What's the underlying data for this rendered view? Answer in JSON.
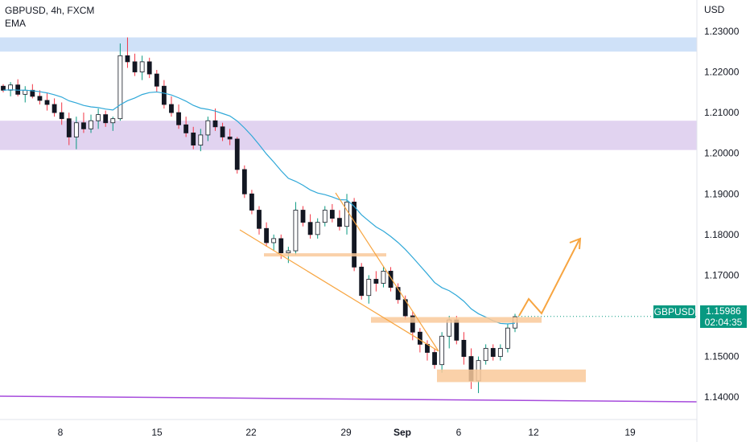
{
  "legend": {
    "line1": "GBPUSD, 4h, FXCM",
    "line2": "EMA"
  },
  "axis": {
    "currency": "USD"
  },
  "price_badge": {
    "symbol": "GBPUSD",
    "price": "1.15986",
    "countdown": "02:04:35"
  },
  "colors": {
    "up": "#089981",
    "down": "#f23645",
    "candle_body": "#131722",
    "ema": "#2fa8d8",
    "blue_zone": "#c7dcf7",
    "purple_zone": "#dccbed",
    "orange": "#f7a541",
    "support_line": "#a64bdc",
    "badge": "#089981"
  },
  "chart_data": {
    "type": "candlestick",
    "title": "GBPUSD, 4h, FXCM",
    "ylabel": "USD",
    "ylim": [
      1.1345,
      1.2377
    ],
    "y_ticks": [
      "1.23000",
      "1.22000",
      "1.21000",
      "1.20000",
      "1.19000",
      "1.18000",
      "1.17000",
      "1.16000",
      "1.15000",
      "1.14000"
    ],
    "x_ticks": [
      "8",
      "15",
      "22",
      "29",
      "Sep",
      "6",
      "12",
      "19"
    ],
    "last_price": 1.15986,
    "zones": [
      {
        "name": "resistance-blue",
        "low": 1.225,
        "high": 1.2285
      },
      {
        "name": "resistance-purple",
        "low": 1.2008,
        "high": 1.208
      }
    ],
    "key_levels": [
      {
        "name": "level-1-1750",
        "price": 1.175
      },
      {
        "name": "level-1-1590",
        "price": 1.159
      },
      {
        "name": "level-1-1450",
        "price": 1.145
      }
    ],
    "price_path_ohlc": [
      [
        1.2165,
        1.217,
        1.215,
        1.2155
      ],
      [
        1.2155,
        1.2175,
        1.214,
        1.2168
      ],
      [
        1.2168,
        1.2182,
        1.214,
        1.2145
      ],
      [
        1.2145,
        1.2165,
        1.2125,
        1.2155
      ],
      [
        1.2155,
        1.217,
        1.2135,
        1.214
      ],
      [
        1.214,
        1.2155,
        1.212,
        1.213
      ],
      [
        1.213,
        1.2148,
        1.2105,
        1.212
      ],
      [
        1.212,
        1.2135,
        1.209,
        1.21
      ],
      [
        1.21,
        1.2125,
        1.207,
        1.2085
      ],
      [
        1.2085,
        1.21,
        1.202,
        1.204
      ],
      [
        1.204,
        1.209,
        1.201,
        1.2075
      ],
      [
        1.2075,
        1.21,
        1.205,
        1.206
      ],
      [
        1.206,
        1.2095,
        1.205,
        1.208
      ],
      [
        1.208,
        1.211,
        1.206,
        1.2095
      ],
      [
        1.2095,
        1.2105,
        1.2065,
        1.2075
      ],
      [
        1.2075,
        1.209,
        1.2055,
        1.2085
      ],
      [
        1.2085,
        1.227,
        1.208,
        1.224
      ],
      [
        1.224,
        1.2285,
        1.221,
        1.2225
      ],
      [
        1.2225,
        1.2245,
        1.219,
        1.22
      ],
      [
        1.22,
        1.224,
        1.218,
        1.2225
      ],
      [
        1.2225,
        1.2235,
        1.2185,
        1.2195
      ],
      [
        1.2195,
        1.2205,
        1.215,
        1.2165
      ],
      [
        1.2165,
        1.218,
        1.211,
        1.212
      ],
      [
        1.212,
        1.214,
        1.209,
        1.21
      ],
      [
        1.21,
        1.212,
        1.206,
        1.207
      ],
      [
        1.207,
        1.209,
        1.204,
        1.205
      ],
      [
        1.205,
        1.2065,
        1.201,
        1.202
      ],
      [
        1.202,
        1.206,
        1.2005,
        1.2045
      ],
      [
        1.2045,
        1.209,
        1.203,
        1.208
      ],
      [
        1.208,
        1.211,
        1.2055,
        1.2065
      ],
      [
        1.2065,
        1.2075,
        1.203,
        1.204
      ],
      [
        1.204,
        1.206,
        1.202,
        1.2035
      ],
      [
        1.2035,
        1.204,
        1.195,
        1.196
      ],
      [
        1.196,
        1.197,
        1.189,
        1.19
      ],
      [
        1.19,
        1.191,
        1.185,
        1.186
      ],
      [
        1.186,
        1.187,
        1.18,
        1.1815
      ],
      [
        1.1815,
        1.183,
        1.177,
        1.178
      ],
      [
        1.178,
        1.18,
        1.176,
        1.179
      ],
      [
        1.179,
        1.18,
        1.174,
        1.1755
      ],
      [
        1.1755,
        1.177,
        1.173,
        1.176
      ],
      [
        1.176,
        1.188,
        1.175,
        1.186
      ],
      [
        1.186,
        1.187,
        1.182,
        1.183
      ],
      [
        1.183,
        1.185,
        1.179,
        1.18
      ],
      [
        1.18,
        1.184,
        1.179,
        1.183
      ],
      [
        1.183,
        1.187,
        1.182,
        1.186
      ],
      [
        1.186,
        1.1875,
        1.183,
        1.184
      ],
      [
        1.184,
        1.186,
        1.181,
        1.182
      ],
      [
        1.182,
        1.19,
        1.18,
        1.188
      ],
      [
        1.188,
        1.189,
        1.171,
        1.172
      ],
      [
        1.172,
        1.173,
        1.164,
        1.165
      ],
      [
        1.165,
        1.17,
        1.163,
        1.169
      ],
      [
        1.169,
        1.171,
        1.166,
        1.168
      ],
      [
        1.168,
        1.172,
        1.167,
        1.171
      ],
      [
        1.171,
        1.172,
        1.166,
        1.167
      ],
      [
        1.167,
        1.168,
        1.163,
        1.164
      ],
      [
        1.164,
        1.165,
        1.159,
        1.16
      ],
      [
        1.16,
        1.161,
        1.154,
        1.156
      ],
      [
        1.156,
        1.157,
        1.151,
        1.153
      ],
      [
        1.153,
        1.154,
        1.149,
        1.151
      ],
      [
        1.151,
        1.152,
        1.147,
        1.148
      ],
      [
        1.148,
        1.156,
        1.146,
        1.155
      ],
      [
        1.155,
        1.16,
        1.152,
        1.159
      ],
      [
        1.159,
        1.16,
        1.153,
        1.154
      ],
      [
        1.154,
        1.156,
        1.148,
        1.15
      ],
      [
        1.15,
        1.152,
        1.142,
        1.144
      ],
      [
        1.144,
        1.15,
        1.141,
        1.149
      ],
      [
        1.149,
        1.153,
        1.148,
        1.152
      ],
      [
        1.152,
        1.153,
        1.149,
        1.15
      ],
      [
        1.15,
        1.153,
        1.149,
        1.152
      ],
      [
        1.152,
        1.158,
        1.151,
        1.157
      ],
      [
        1.157,
        1.1605,
        1.156,
        1.1598
      ]
    ],
    "projection": [
      {
        "step": 0,
        "price": 1.1598
      },
      {
        "step": 1,
        "price": 1.1622
      },
      {
        "step": 2,
        "price": 1.1598
      },
      {
        "step": 3,
        "price": 1.179
      }
    ],
    "grid": false
  }
}
